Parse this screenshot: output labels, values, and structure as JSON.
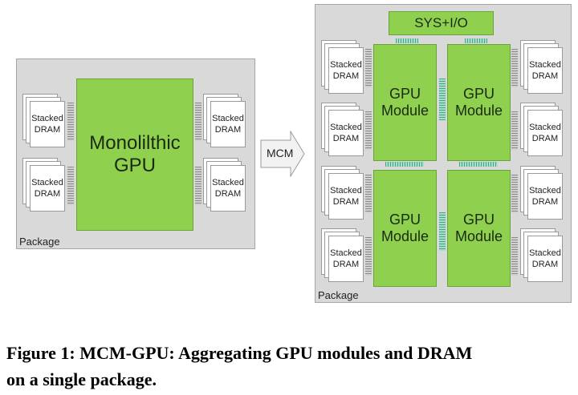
{
  "left_package": {
    "label": "Package",
    "gpu_label_line1": "Monolilthic",
    "gpu_label_line2": "GPU",
    "dram_line1": "Stacked",
    "dram_line2": "DRAM"
  },
  "arrow": {
    "label": "MCM"
  },
  "right_package": {
    "label": "Package",
    "sysio_label": "SYS+I/O",
    "module_line1": "GPU",
    "module_line2": "Module",
    "dram_line1": "Stacked",
    "dram_line2": "DRAM"
  },
  "caption": {
    "line1": "Figure 1: MCM-GPU: Aggregating GPU modules and DRAM",
    "line2": "on a single package."
  },
  "colors": {
    "gpu_green": "#8fd14f",
    "package_gray": "#d9d9d9",
    "link_teal": "#3fa98a"
  }
}
